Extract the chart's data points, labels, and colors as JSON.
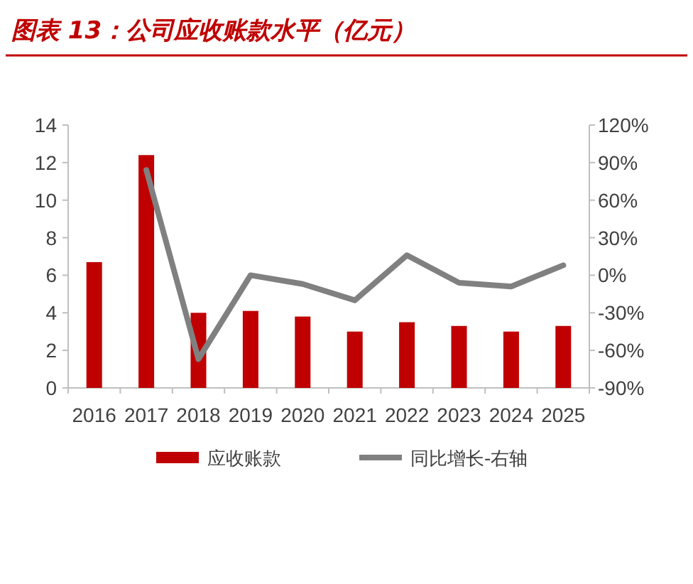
{
  "chart_data": {
    "type": "bar",
    "title": "图表 13：公司应收账款水平（亿元）",
    "categories": [
      "2016",
      "2017",
      "2018",
      "2019",
      "2020",
      "2021",
      "2022",
      "2023",
      "2024",
      "2025"
    ],
    "series": [
      {
        "name": "应收账款",
        "color": "#c00000",
        "values": [
          6.7,
          12.4,
          4.0,
          4.1,
          3.8,
          3.0,
          3.5,
          3.3,
          3.0,
          3.3
        ]
      },
      {
        "name": "同比增长-右轴",
        "type": "line",
        "axis": "y2",
        "color": "#808080",
        "marker": "none",
        "line_style": "solid",
        "values": [
          null,
          84,
          -67,
          0,
          -7,
          -20,
          16,
          -6,
          -9,
          8
        ]
      }
    ],
    "ylim": [
      0,
      14
    ],
    "yticks": [
      0,
      2,
      4,
      6,
      8,
      10,
      12,
      14
    ],
    "y2lim": [
      -90,
      120
    ],
    "y2ticks": [
      {
        "value": -90,
        "label": "-90%"
      },
      {
        "value": -60,
        "label": "-60%"
      },
      {
        "value": -30,
        "label": "-30%"
      },
      {
        "value": 0,
        "label": "0%"
      },
      {
        "value": 30,
        "label": "30%"
      },
      {
        "value": 60,
        "label": "60%"
      },
      {
        "value": 90,
        "label": "90%"
      },
      {
        "value": 120,
        "label": "120%"
      }
    ],
    "grid": false,
    "legend": "bottom"
  }
}
